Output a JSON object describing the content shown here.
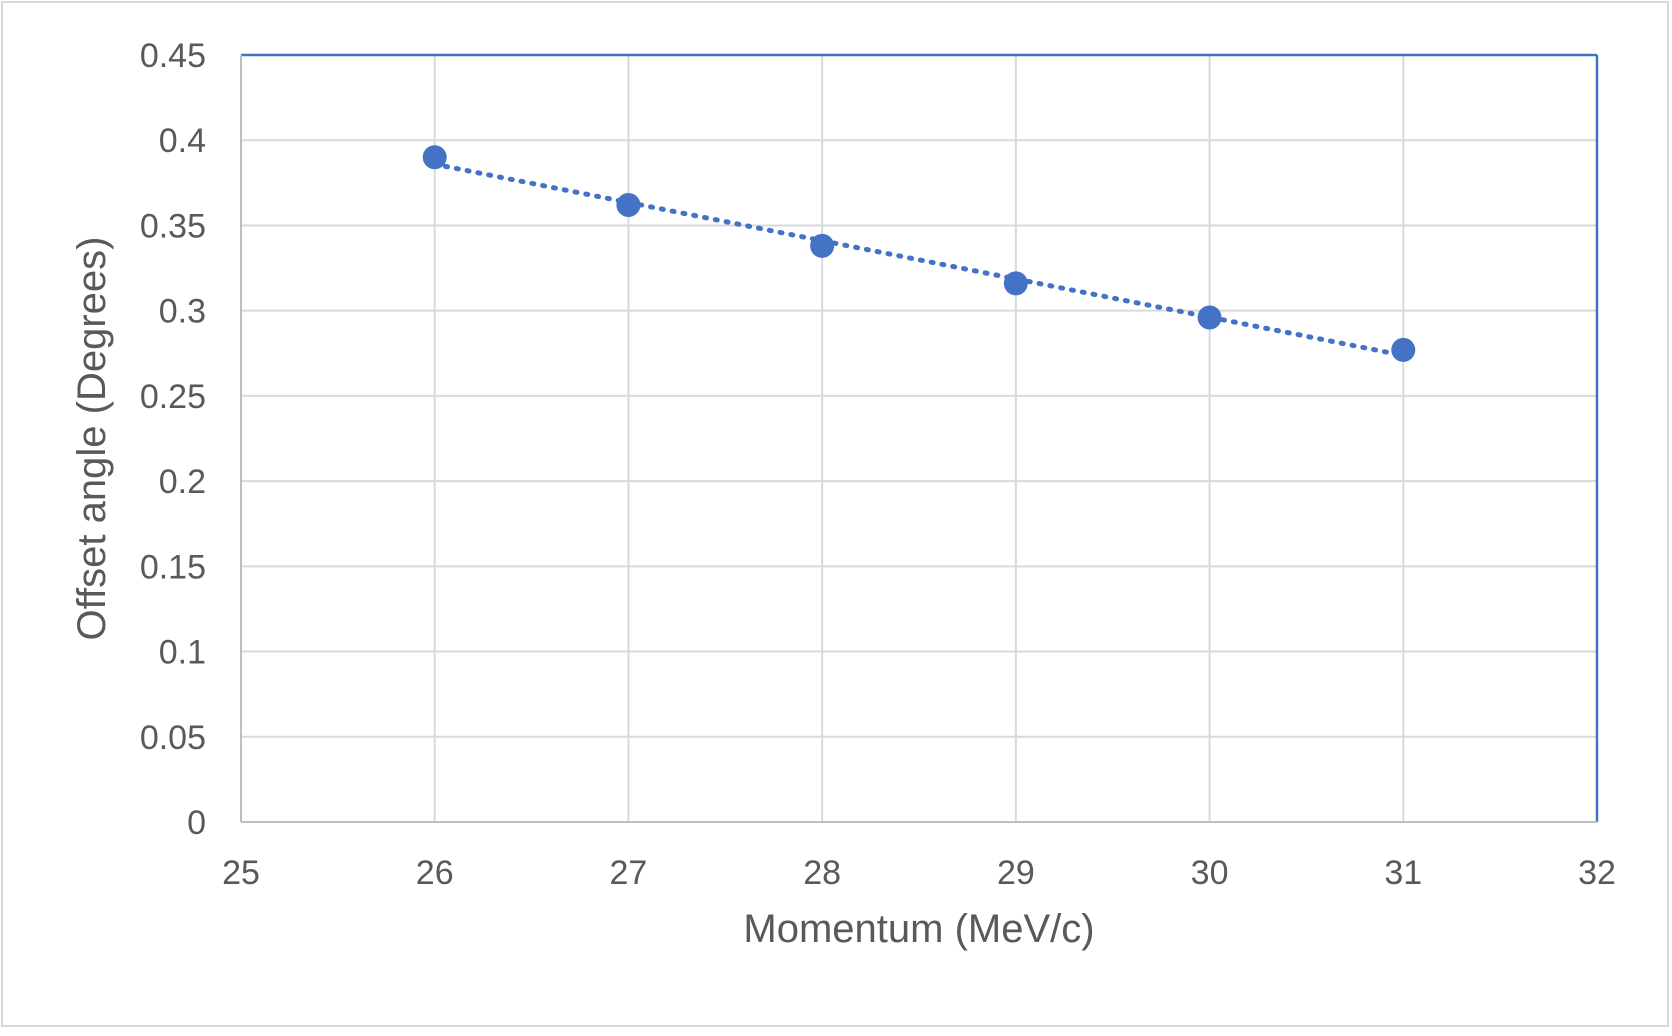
{
  "chart_data": {
    "type": "scatter",
    "title": "",
    "xlabel": "Momentum (MeV/c)",
    "ylabel": "Offset angle (Degrees)",
    "xlim": [
      25,
      32
    ],
    "ylim": [
      0,
      0.45
    ],
    "x_ticks": [
      "25",
      "26",
      "27",
      "28",
      "29",
      "30",
      "31",
      "32"
    ],
    "y_ticks": [
      "0",
      "0.05",
      "0.1",
      "0.15",
      "0.2",
      "0.25",
      "0.3",
      "0.35",
      "0.4",
      "0.45"
    ],
    "grid": true,
    "legend": "none",
    "series": [
      {
        "x": [
          26,
          27,
          28,
          29,
          30,
          31
        ],
        "y": [
          0.39,
          0.362,
          0.338,
          0.316,
          0.296,
          0.277
        ],
        "marker": "circle",
        "color": "#4472C4",
        "trendline": "linear-dotted"
      }
    ],
    "colors": {
      "series": "#4472C4",
      "grid": "#d9d9d9",
      "frame": "#4472C4",
      "text": "#595959",
      "border": "#d9d9d9"
    }
  }
}
